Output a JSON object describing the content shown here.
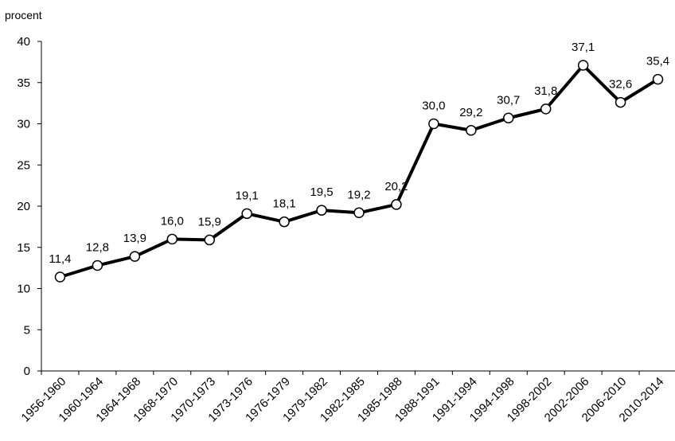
{
  "chart_data": {
    "type": "line",
    "ylabel": "procent",
    "ylim": [
      0,
      40
    ],
    "yticks": [
      "0",
      "5",
      "10",
      "15",
      "20",
      "25",
      "30",
      "35",
      "40"
    ],
    "grid": false,
    "legend": "none",
    "line_color": "#000000",
    "marker_fill": "#ffffff",
    "categories": [
      "1956-1960",
      "1960-1964",
      "1964-1968",
      "1968-1970",
      "1970-1973",
      "1973-1976",
      "1976-1979",
      "1979-1982",
      "1982-1985",
      "1985-1988",
      "1988-1991",
      "1991-1994",
      "1994-1998",
      "1998-2002",
      "2002-2006",
      "2006-2010",
      "2010-2014"
    ],
    "values": [
      11.4,
      12.8,
      13.9,
      16.0,
      15.9,
      19.1,
      18.1,
      19.5,
      19.2,
      20.2,
      30.0,
      29.2,
      30.7,
      31.8,
      37.1,
      32.6,
      35.4
    ],
    "data_labels": [
      "11,4",
      "12,8",
      "13,9",
      "16,0",
      "15,9",
      "19,1",
      "18,1",
      "19,5",
      "19,2",
      "20,2",
      "30,0",
      "29,2",
      "30,7",
      "31,8",
      "37,1",
      "32,6",
      "35,4"
    ]
  }
}
